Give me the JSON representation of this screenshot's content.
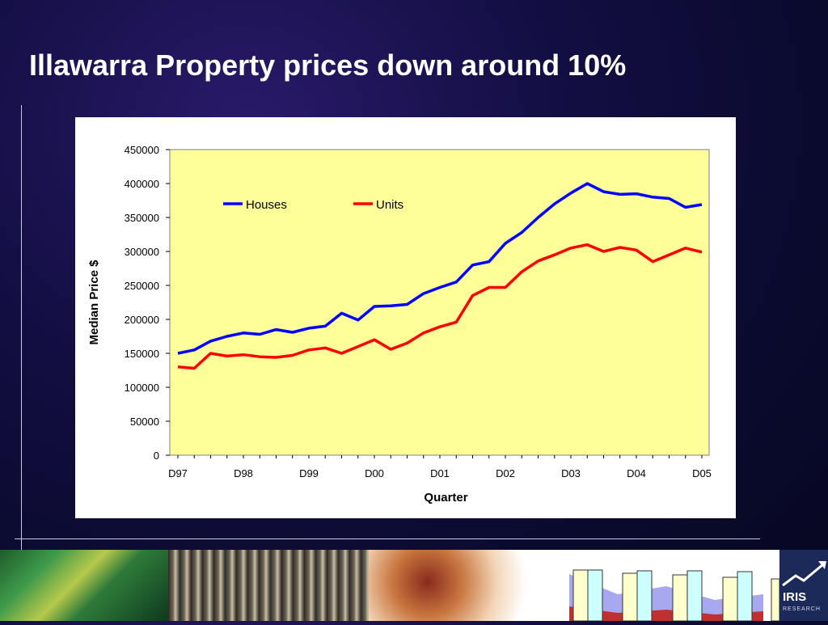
{
  "slide": {
    "title": "Illawarra Property prices down around 10%"
  },
  "logo": {
    "name": "IRIS",
    "sub": "RESEARCH"
  },
  "chart_data": {
    "type": "line",
    "title": "",
    "xlabel": "Quarter",
    "ylabel": "Median Price $",
    "ylim": [
      0,
      450000
    ],
    "yticks": [
      0,
      50000,
      100000,
      150000,
      200000,
      250000,
      300000,
      350000,
      400000,
      450000
    ],
    "xtick_labels": [
      "D97",
      "D98",
      "D99",
      "D00",
      "D01",
      "D02",
      "D03",
      "D04",
      "D05"
    ],
    "x": [
      "D97",
      "M98",
      "J98",
      "S98",
      "D98",
      "M99",
      "J99",
      "S99",
      "D99",
      "M00",
      "J00",
      "S00",
      "D00",
      "M01",
      "J01",
      "S01",
      "D01",
      "M02",
      "J02",
      "S02",
      "D02",
      "M03",
      "J03",
      "S03",
      "D03",
      "M04",
      "J04",
      "S04",
      "D04",
      "M05",
      "J05",
      "S05",
      "D05"
    ],
    "legend": "top-left inside plot",
    "grid": false,
    "plot_background": "#ffff99",
    "series": [
      {
        "name": "Houses",
        "color": "#0000ff",
        "values": [
          150000,
          155000,
          168000,
          175000,
          180000,
          178000,
          185000,
          181000,
          187000,
          190000,
          209000,
          199000,
          219000,
          220000,
          222000,
          238000,
          247000,
          255000,
          280000,
          285000,
          312000,
          328000,
          350000,
          370000,
          386000,
          400000,
          388000,
          384000,
          385000,
          380000,
          378000,
          365000,
          369000
        ]
      },
      {
        "name": "Units",
        "color": "#ff0000",
        "values": [
          130000,
          128000,
          150000,
          146000,
          148000,
          145000,
          144000,
          147000,
          155000,
          158000,
          150000,
          160000,
          170000,
          156000,
          165000,
          180000,
          189000,
          196000,
          235000,
          247000,
          247000,
          270000,
          286000,
          295000,
          305000,
          310000,
          300000,
          306000,
          302000,
          285000,
          295000,
          305000,
          299000
        ]
      }
    ]
  }
}
